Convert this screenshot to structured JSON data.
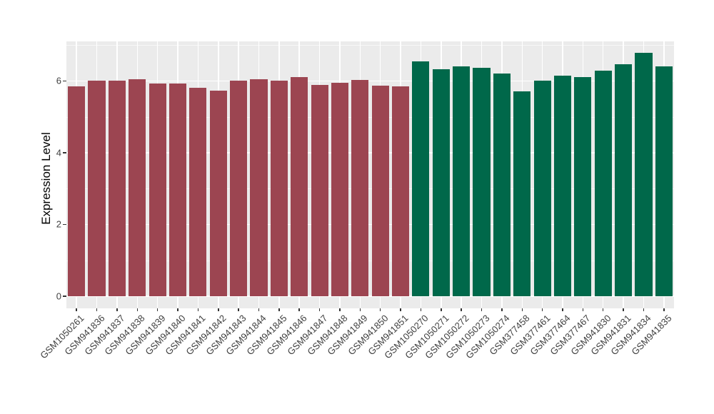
{
  "chart_data": {
    "type": "bar",
    "title": "",
    "xlabel": "",
    "ylabel": "Expression Level",
    "legend": "none",
    "grid": "on",
    "panel_background": "#EBEBEB",
    "gridline_major_color": "#FFFFFF",
    "gridline_minor_color": "#F7F7F7",
    "axis_text_color": "#404040",
    "y_axis": {
      "ticks": [
        0,
        2,
        4,
        6
      ],
      "minor_ticks": [
        1,
        3,
        5,
        7
      ],
      "range": [
        0,
        7.1
      ]
    },
    "categories": [
      "GSM1050261",
      "GSM941836",
      "GSM941837",
      "GSM941838",
      "GSM941839",
      "GSM941840",
      "GSM941841",
      "GSM941842",
      "GSM941843",
      "GSM941844",
      "GSM941845",
      "GSM941846",
      "GSM941847",
      "GSM941848",
      "GSM941849",
      "GSM941850",
      "GSM941851",
      "GSM1050270",
      "GSM1050271",
      "GSM1050272",
      "GSM1050273",
      "GSM1050274",
      "GSM377458",
      "GSM377461",
      "GSM377464",
      "GSM377467",
      "GSM941830",
      "GSM941831",
      "GSM941834",
      "GSM941835"
    ],
    "values": [
      5.85,
      6.01,
      6.01,
      6.05,
      5.93,
      5.93,
      5.8,
      5.73,
      6.01,
      6.05,
      6.01,
      6.11,
      5.89,
      5.95,
      6.03,
      5.87,
      5.85,
      6.55,
      6.32,
      6.41,
      6.37,
      6.21,
      5.7,
      6.0,
      6.15,
      6.1,
      6.29,
      6.46,
      6.78,
      6.41
    ],
    "groups": [
      0,
      0,
      0,
      0,
      0,
      0,
      0,
      0,
      0,
      0,
      0,
      0,
      0,
      0,
      0,
      0,
      0,
      1,
      1,
      1,
      1,
      1,
      1,
      1,
      1,
      1,
      1,
      1,
      1,
      1
    ],
    "group_colors": [
      "#9C4551",
      "#00684A"
    ]
  }
}
